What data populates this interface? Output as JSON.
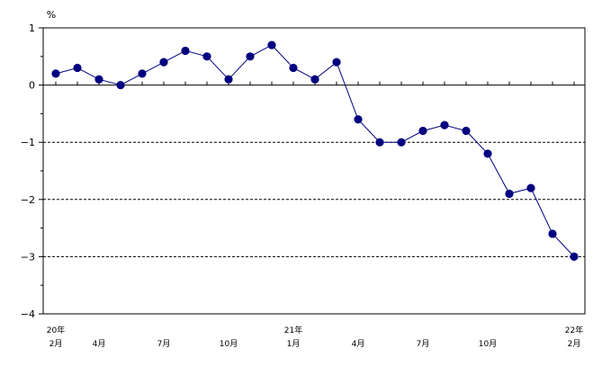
{
  "chart_data": {
    "type": "line",
    "unit_label": "%",
    "ylim": [
      -4,
      1
    ],
    "yticks": [
      1,
      0,
      -1,
      -2,
      -3,
      -4
    ],
    "y_tick_labels": [
      "1",
      "0",
      "−1",
      "−2",
      "−3",
      "−4"
    ],
    "grid": "dashed horizontal lines at -1, -2, -3; solid line at 0",
    "x": [
      "2020-02",
      "2020-03",
      "2020-04",
      "2020-05",
      "2020-06",
      "2020-07",
      "2020-08",
      "2020-09",
      "2020-10",
      "2020-11",
      "2020-12",
      "2021-01",
      "2021-02",
      "2021-03",
      "2021-04",
      "2021-05",
      "2021-06",
      "2021-07",
      "2021-08",
      "2021-09",
      "2021-10",
      "2021-11",
      "2021-12",
      "2022-01",
      "2022-02"
    ],
    "x_tick_labels": [
      {
        "x": "2020-02",
        "line1": "20年",
        "line2": "2月"
      },
      {
        "x": "2020-04",
        "line1": "",
        "line2": "4月"
      },
      {
        "x": "2020-07",
        "line1": "",
        "line2": "7月"
      },
      {
        "x": "2020-10",
        "line1": "",
        "line2": "10月"
      },
      {
        "x": "2021-01",
        "line1": "21年",
        "line2": "1月"
      },
      {
        "x": "2021-04",
        "line1": "",
        "line2": "4月"
      },
      {
        "x": "2021-07",
        "line1": "",
        "line2": "7月"
      },
      {
        "x": "2021-10",
        "line1": "",
        "line2": "10月"
      },
      {
        "x": "2022-02",
        "line1": "22年",
        "line2": "2月"
      }
    ],
    "series": [
      {
        "values": [
          0.2,
          0.3,
          0.1,
          0.0,
          0.2,
          0.4,
          0.6,
          0.5,
          0.1,
          0.5,
          0.7,
          0.3,
          0.1,
          0.4,
          -0.6,
          -1.0,
          -1.0,
          -0.8,
          -0.7,
          -0.8,
          -1.2,
          -1.9,
          -1.8,
          -2.6,
          -3.0
        ],
        "color": "#000080"
      }
    ]
  }
}
